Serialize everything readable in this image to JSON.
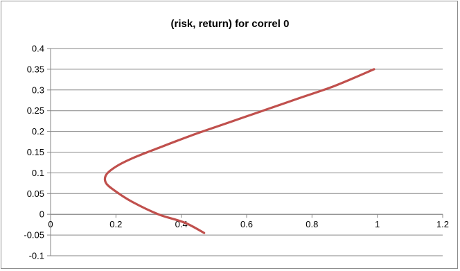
{
  "chart_data": {
    "type": "line",
    "title": "(risk, return) for correl 0",
    "xlabel": "",
    "ylabel": "",
    "xlim": [
      0,
      1.2
    ],
    "ylim": [
      -0.1,
      0.4
    ],
    "x_ticks": [
      0,
      0.2,
      0.4,
      0.6,
      0.8,
      1,
      1.2
    ],
    "y_ticks": [
      -0.1,
      -0.05,
      0,
      0.05,
      0.1,
      0.15,
      0.2,
      0.25,
      0.3,
      0.35,
      0.4
    ],
    "x_tick_labels": [
      "0",
      "0.2",
      "0.4",
      "0.6",
      "0.8",
      "1",
      "1.2"
    ],
    "y_tick_labels": [
      "-0.1",
      "-0.05",
      "0",
      "0.05",
      "0.1",
      "0.15",
      "0.2",
      "0.25",
      "0.3",
      "0.35",
      "0.4"
    ],
    "grid": {
      "horizontal": true,
      "vertical": false
    },
    "legend": "none",
    "series": [
      {
        "color": "#c0504d",
        "x": [
          0.47,
          0.41,
          0.33,
          0.25,
          0.2,
          0.17,
          0.17,
          0.2,
          0.25,
          0.33,
          0.43,
          0.54,
          0.65,
          0.76,
          0.87,
          0.99
        ],
        "y": [
          -0.045,
          -0.02,
          0.0,
          0.03,
          0.055,
          0.075,
          0.095,
          0.115,
          0.135,
          0.16,
          0.19,
          0.22,
          0.25,
          0.28,
          0.31,
          0.35
        ]
      }
    ]
  }
}
